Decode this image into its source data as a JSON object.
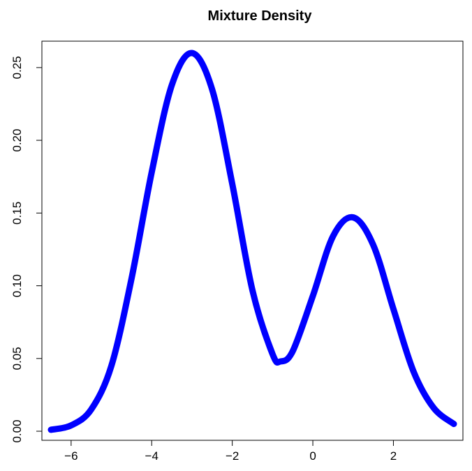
{
  "chart_data": {
    "type": "line",
    "title": "Mixture Density",
    "xlabel": "",
    "ylabel": "",
    "xlim": [
      -6.5,
      3.5
    ],
    "ylim": [
      0,
      0.26
    ],
    "x_ticks": [
      -6,
      -4,
      -2,
      0,
      2
    ],
    "x_tick_labels": [
      "−6",
      "−4",
      "−2",
      "0",
      "2"
    ],
    "y_ticks": [
      0.0,
      0.05,
      0.1,
      0.15,
      0.2,
      0.25
    ],
    "y_tick_labels": [
      "0.00",
      "0.05",
      "0.10",
      "0.15",
      "0.20",
      "0.25"
    ],
    "grid": false,
    "series": [
      {
        "color": "#0000ff",
        "x": [
          -6.5,
          -6.0,
          -5.5,
          -5.0,
          -4.5,
          -4.0,
          -3.5,
          -3.0,
          -2.5,
          -2.0,
          -1.5,
          -1.0,
          -0.8,
          -0.5,
          0.0,
          0.5,
          1.0,
          1.5,
          2.0,
          2.5,
          3.0,
          3.5
        ],
        "y": [
          0.001,
          0.004,
          0.015,
          0.045,
          0.105,
          0.178,
          0.238,
          0.26,
          0.235,
          0.17,
          0.097,
          0.053,
          0.048,
          0.055,
          0.093,
          0.134,
          0.147,
          0.128,
          0.084,
          0.041,
          0.016,
          0.005
        ]
      }
    ]
  }
}
